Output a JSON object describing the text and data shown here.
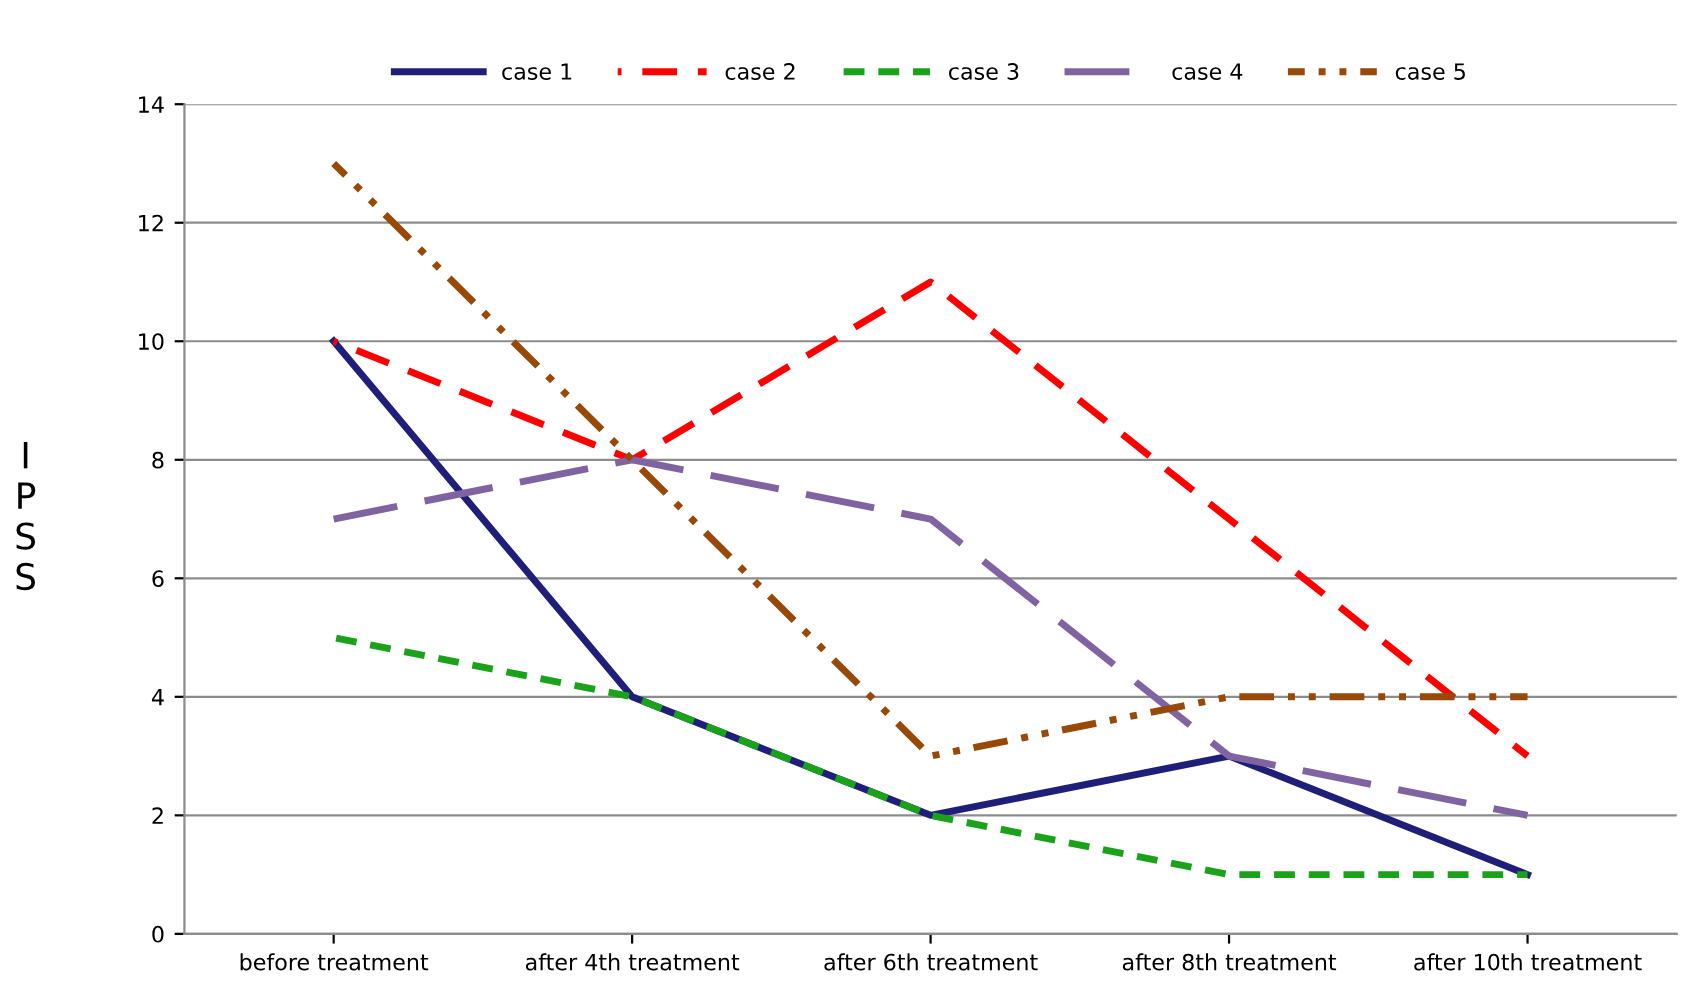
{
  "chart_data": {
    "type": "line",
    "ylabel": "IPSS",
    "categories": [
      "before treatment",
      "after 4th treatment",
      "after 6th treatment",
      "after 8th treatment",
      "after 10th treatment"
    ],
    "series": [
      {
        "name": "case 1",
        "color": "#1f1f7a",
        "line_style": "solid",
        "values": [
          10,
          4,
          2,
          3,
          1
        ]
      },
      {
        "name": "case 2",
        "color": "#ff0000",
        "line_style": "dashed",
        "values": [
          10,
          8,
          11,
          7,
          3
        ]
      },
      {
        "name": "case 3",
        "color": "#1aa31a",
        "line_style": "dotted",
        "values": [
          5,
          4,
          2,
          1,
          1
        ]
      },
      {
        "name": "case 4",
        "color": "#8064a2",
        "line_style": "longdash",
        "values": [
          7,
          8,
          7,
          3,
          2
        ]
      },
      {
        "name": "case 5",
        "color": "#984807",
        "line_style": "dashdotdot",
        "values": [
          13,
          8,
          3,
          4,
          4
        ]
      }
    ],
    "ylim": [
      0,
      14
    ],
    "yticks": [
      0,
      2,
      4,
      6,
      8,
      10,
      12,
      14
    ],
    "grid": "y",
    "legend": "top",
    "marker": "none"
  }
}
